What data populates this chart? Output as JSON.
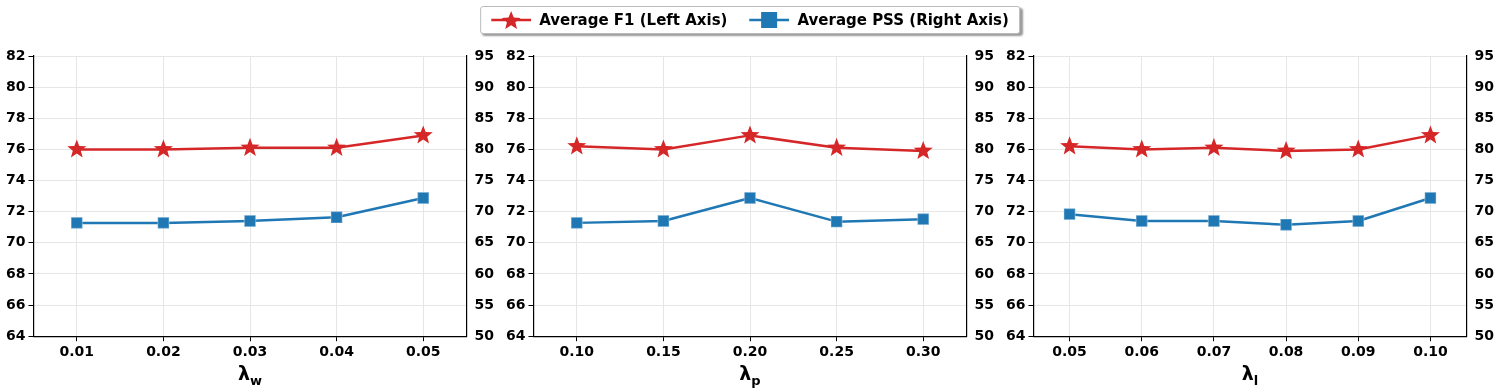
{
  "chart_data": [
    {
      "type": "line",
      "categories": [
        "0.01",
        "0.02",
        "0.03",
        "0.04",
        "0.05"
      ],
      "xlabel": "λ$_{w}$",
      "ylim": [
        64,
        82
      ],
      "yticks": [
        64,
        66,
        68,
        70,
        72,
        74,
        76,
        78,
        80,
        82
      ],
      "y2lim": [
        50,
        95
      ],
      "y2ticks": [
        50,
        55,
        60,
        65,
        70,
        75,
        80,
        85,
        90,
        95
      ],
      "grid": true,
      "legend": "top",
      "series": [
        {
          "name": "Average F1 (Left Axis)",
          "color": "#d62728",
          "marker": "star",
          "values": [
            76.0,
            76.0,
            76.1,
            76.1,
            76.9
          ]
        },
        {
          "name": "Average PSS (Right Axis)",
          "color": "#1f77b4",
          "marker": "square",
          "axis": "y2",
          "values": [
            68.2,
            68.2,
            68.5,
            69.1,
            72.2
          ]
        }
      ]
    },
    {
      "type": "line",
      "categories": [
        "0.10",
        "0.15",
        "0.20",
        "0.25",
        "0.30"
      ],
      "xlabel": "λ$_{p}$",
      "ylim": [
        64,
        82
      ],
      "yticks": [
        64,
        66,
        68,
        70,
        72,
        74,
        76,
        78,
        80,
        82
      ],
      "y2lim": [
        50,
        95
      ],
      "y2ticks": [
        50,
        55,
        60,
        65,
        70,
        75,
        80,
        85,
        90,
        95
      ],
      "grid": true,
      "series": [
        {
          "color": "#d62728",
          "marker": "star",
          "values": [
            76.2,
            76.0,
            76.9,
            76.1,
            75.9
          ]
        },
        {
          "color": "#1f77b4",
          "marker": "square",
          "axis": "y2",
          "values": [
            68.2,
            68.5,
            72.2,
            68.4,
            68.8
          ]
        }
      ]
    },
    {
      "type": "line",
      "categories": [
        "0.05",
        "0.06",
        "0.07",
        "0.08",
        "0.09",
        "0.10"
      ],
      "xlabel": "λ$_{l}$",
      "ylim": [
        64,
        82
      ],
      "yticks": [
        64,
        66,
        68,
        70,
        72,
        74,
        76,
        78,
        80,
        82
      ],
      "y2lim": [
        50,
        95
      ],
      "y2ticks": [
        50,
        55,
        60,
        65,
        70,
        75,
        80,
        85,
        90,
        95
      ],
      "grid": true,
      "series": [
        {
          "color": "#d62728",
          "marker": "star",
          "values": [
            76.2,
            76.0,
            76.1,
            75.9,
            76.0,
            76.9
          ]
        },
        {
          "color": "#1f77b4",
          "marker": "square",
          "axis": "y2",
          "values": [
            69.6,
            68.5,
            68.5,
            67.9,
            68.5,
            72.2
          ]
        }
      ]
    }
  ]
}
